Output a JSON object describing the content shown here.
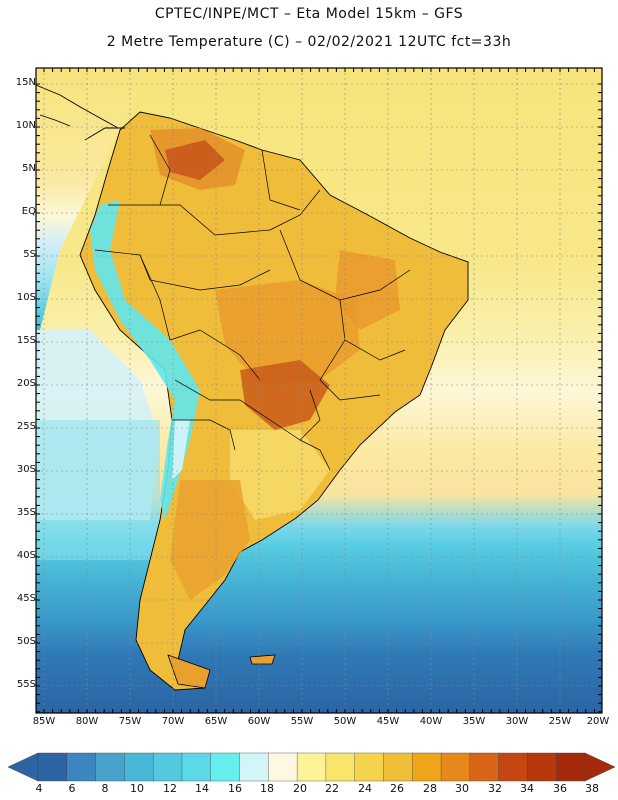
{
  "header": {
    "line1": "CPTEC/INPE/MCT –  Eta Model 15km – GFS",
    "line2": "2 Metre Temperature (C) – 02/02/2021 12UTC fct=33h"
  },
  "axes": {
    "lat_labels": [
      "15N",
      "10N",
      "5N",
      "EQ",
      "5S",
      "10S",
      "15S",
      "20S",
      "25S",
      "30S",
      "35S",
      "40S",
      "45S",
      "50S",
      "55S"
    ],
    "lon_labels": [
      "85W",
      "80W",
      "75W",
      "70W",
      "65W",
      "60W",
      "55W",
      "50W",
      "45W",
      "40W",
      "35W",
      "30W",
      "25W",
      "20W"
    ]
  },
  "colorbar": {
    "labels": [
      "4",
      "6",
      "8",
      "10",
      "12",
      "14",
      "16",
      "18",
      "20",
      "22",
      "24",
      "26",
      "28",
      "30",
      "32",
      "34",
      "36",
      "38"
    ],
    "colors": [
      "#2c64a4",
      "#3b86c0",
      "#48a2cc",
      "#49b8d6",
      "#52c9de",
      "#5bd9e6",
      "#66efef",
      "#d2f5f9",
      "#fdf8e0",
      "#fcf296",
      "#f9e56c",
      "#f5d34c",
      "#f0bf3a",
      "#efa51a",
      "#e5891a",
      "#d96618",
      "#c64612",
      "#b8380e",
      "#a52a0c"
    ]
  },
  "map": {
    "continent_colors": [
      "#f2c23e",
      "#eeaa2c",
      "#e6902a",
      "#d06a18",
      "#c2561a",
      "#f7dd6e",
      "#fdf6d8",
      "#7ee7ef",
      "#4ed4e6"
    ],
    "ocean_band_colors": [
      "#f7e47a",
      "#faeea0",
      "#fdf7d6",
      "#cfe9f4",
      "#58cde2",
      "#47b6d6",
      "#3a9ccc",
      "#2f79b6",
      "#2b64a4"
    ]
  }
}
